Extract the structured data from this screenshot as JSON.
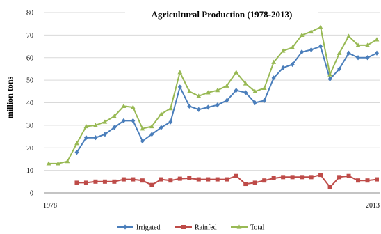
{
  "chart_data": {
    "type": "line",
    "title": "Agricultural Production (1978-2013)",
    "xlabel": "",
    "ylabel": "million tons",
    "ylim": [
      0,
      80
    ],
    "yticks": [
      "0",
      "10",
      "20",
      "30",
      "40",
      "50",
      "60",
      "70",
      "80"
    ],
    "xtick_start": "1978",
    "xtick_end": "2013",
    "x": [
      1978,
      1979,
      1980,
      1981,
      1982,
      1983,
      1984,
      1985,
      1986,
      1987,
      1988,
      1989,
      1990,
      1991,
      1992,
      1993,
      1994,
      1995,
      1996,
      1997,
      1998,
      1999,
      2000,
      2001,
      2002,
      2003,
      2004,
      2005,
      2006,
      2007,
      2008,
      2009,
      2010,
      2011,
      2012,
      2013
    ],
    "grid": true,
    "legend_position": "bottom",
    "series": [
      {
        "name": "Irrigated",
        "color": "#4a7ebb",
        "marker": "diamond",
        "values": [
          null,
          null,
          null,
          18,
          24.5,
          24.5,
          26,
          29,
          32,
          32,
          23,
          26,
          29,
          31.5,
          47,
          38.5,
          37,
          38,
          39,
          41,
          45.5,
          44.5,
          40,
          41,
          51,
          55.5,
          57,
          62.5,
          63.5,
          65,
          50.5,
          55,
          62,
          60,
          60,
          62
        ]
      },
      {
        "name": "Rainfed",
        "color": "#be4b48",
        "marker": "square",
        "values": [
          null,
          null,
          null,
          4.5,
          4.5,
          5,
          5,
          5,
          6,
          6,
          5.5,
          3.5,
          6,
          5.5,
          6.3,
          6.5,
          6,
          6,
          6,
          6,
          7.5,
          4,
          4.5,
          5.5,
          6.5,
          7,
          7,
          7,
          7,
          8,
          2.5,
          7,
          7.5,
          5.5,
          5.5,
          6
        ]
      },
      {
        "name": "Total",
        "color": "#98b954",
        "marker": "triangle",
        "values": [
          13,
          13,
          14,
          22,
          29.5,
          30,
          31.5,
          34,
          38.5,
          38,
          28.5,
          29.5,
          35,
          37.5,
          53.5,
          45,
          43,
          44.5,
          45.5,
          47.5,
          53.5,
          48.5,
          45,
          46.5,
          58,
          63,
          64.5,
          70,
          71.5,
          73.5,
          52.5,
          62,
          69.5,
          65.5,
          65.5,
          68
        ]
      }
    ]
  }
}
